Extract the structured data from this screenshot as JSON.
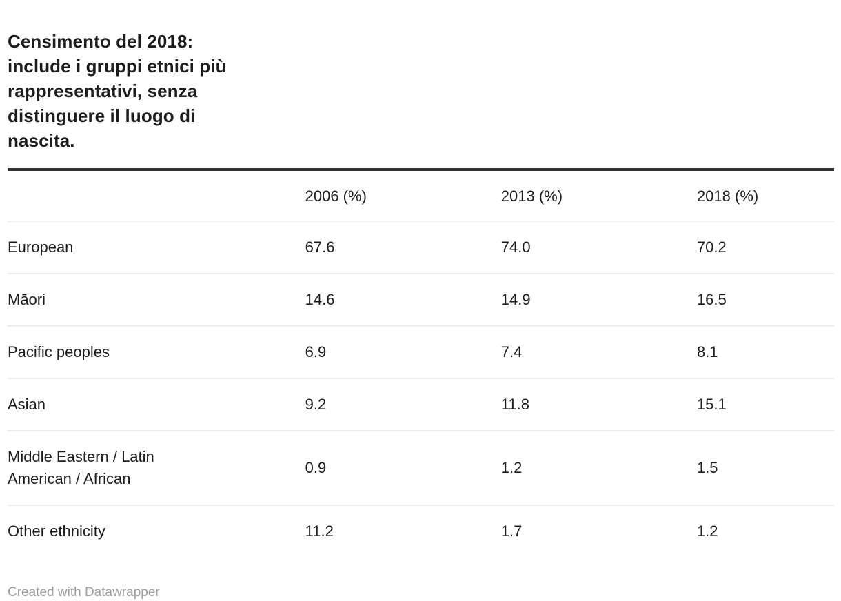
{
  "header": {
    "title": "Censimento del 2018:\ninclude i gruppi etnici più\nrappresentativi, senza\ndistinguere il luogo di\nnascita."
  },
  "table": {
    "columns": [
      "",
      "2006 (%)",
      "2013 (%)",
      "2018 (%)"
    ],
    "rows": [
      {
        "label": "European",
        "values": [
          "67.6",
          "74.0",
          "70.2"
        ]
      },
      {
        "label": "Māori",
        "values": [
          "14.6",
          "14.9",
          "16.5"
        ]
      },
      {
        "label": "Pacific peoples",
        "values": [
          "6.9",
          "7.4",
          "8.1"
        ]
      },
      {
        "label": "Asian",
        "values": [
          "9.2",
          "11.8",
          "15.1"
        ]
      },
      {
        "label": "Middle Eastern / Latin American / African",
        "values": [
          "0.9",
          "1.2",
          "1.5"
        ]
      },
      {
        "label": "Other ethnicity",
        "values": [
          "11.2",
          "1.7",
          "1.2"
        ]
      }
    ]
  },
  "footer": {
    "credit": "Created with Datawrapper"
  },
  "colors": {
    "text": "#1d1d1d",
    "top_rule": "#333333",
    "row_separator": "#ececec",
    "muted_text": "#9d9d9d",
    "background": "#ffffff"
  },
  "chart_data": {
    "type": "table",
    "title": "Censimento del 2018: include i gruppi etnici più rappresentativi, senza distinguere il luogo di nascita.",
    "categories": [
      "European",
      "Māori",
      "Pacific peoples",
      "Asian",
      "Middle Eastern / Latin American / African",
      "Other ethnicity"
    ],
    "series": [
      {
        "name": "2006 (%)",
        "values": [
          67.6,
          14.6,
          6.9,
          9.2,
          0.9,
          11.2
        ]
      },
      {
        "name": "2013 (%)",
        "values": [
          74.0,
          14.9,
          7.4,
          11.8,
          1.2,
          1.7
        ]
      },
      {
        "name": "2018 (%)",
        "values": [
          70.2,
          16.5,
          8.1,
          15.1,
          1.5,
          1.2
        ]
      }
    ],
    "legend_position": "none",
    "grid": "horizontal-separators",
    "attribution": "Created with Datawrapper"
  }
}
